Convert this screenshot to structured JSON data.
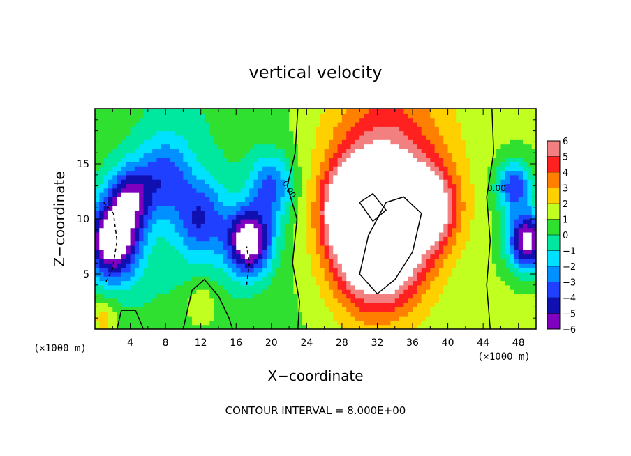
{
  "chart_data": {
    "type": "heatmap",
    "title": "vertical velocity",
    "xlabel": "X−coordinate",
    "ylabel": "Z−coordinate",
    "x_unit": "(×1000 m)",
    "y_unit": "(×1000 m)",
    "xlim": [
      0,
      50
    ],
    "ylim": [
      0,
      20
    ],
    "x_ticks": [
      4,
      8,
      12,
      16,
      20,
      24,
      28,
      32,
      36,
      40,
      44,
      48
    ],
    "y_ticks": [
      5,
      10,
      15
    ],
    "colorbar": {
      "labels": [
        "6",
        "5",
        "4",
        "3",
        "2",
        "1",
        "0",
        "−1",
        "−2",
        "−3",
        "−4",
        "−5",
        "−6"
      ],
      "values": [
        6,
        5,
        4,
        3,
        2,
        1,
        0,
        -1,
        -2,
        -3,
        -4,
        -5,
        -6
      ],
      "colors": {
        "pos": [
          "#ffffff",
          "#f28080",
          "#ff2020",
          "#ff8000",
          "#ffd000",
          "#c0ff20",
          "#30e030"
        ],
        "neg": [
          "#30e030",
          "#00e8a0",
          "#00e0ff",
          "#0090ff",
          "#2040ff",
          "#1010b0",
          "#8000c0"
        ]
      }
    },
    "contour_labels": [
      "0.00",
      "0.00"
    ],
    "contour_interval_text": "CONTOUR INTERVAL = 8.000E+00",
    "field_features": [
      {
        "x": 2,
        "z": 8,
        "w": -8,
        "r": 3
      },
      {
        "x": 4,
        "z": 12,
        "w": -5,
        "r": 2.5
      },
      {
        "x": 8,
        "z": 14,
        "w": -3.5,
        "r": 3
      },
      {
        "x": 12,
        "z": 10,
        "w": -4,
        "r": 3
      },
      {
        "x": 17.5,
        "z": 8,
        "w": -8,
        "r": 2.5
      },
      {
        "x": 20,
        "z": 13,
        "w": -4,
        "r": 2.5
      },
      {
        "x": 1,
        "z": 1,
        "w": 2,
        "r": 1.5
      },
      {
        "x": 12,
        "z": 2,
        "w": 2,
        "r": 1.8
      },
      {
        "x": 32,
        "z": 8,
        "w": 9,
        "r": 5
      },
      {
        "x": 29,
        "z": 11,
        "w": 5,
        "r": 3
      },
      {
        "x": 38,
        "z": 11,
        "w": 5,
        "r": 3
      },
      {
        "x": 33,
        "z": 14,
        "w": 3,
        "r": 6
      },
      {
        "x": 33,
        "z": 17,
        "w": 1.5,
        "r": 8
      },
      {
        "x": 49,
        "z": 8,
        "w": -8,
        "r": 2.2
      },
      {
        "x": 47.5,
        "z": 13,
        "w": -5,
        "r": 2
      }
    ]
  }
}
